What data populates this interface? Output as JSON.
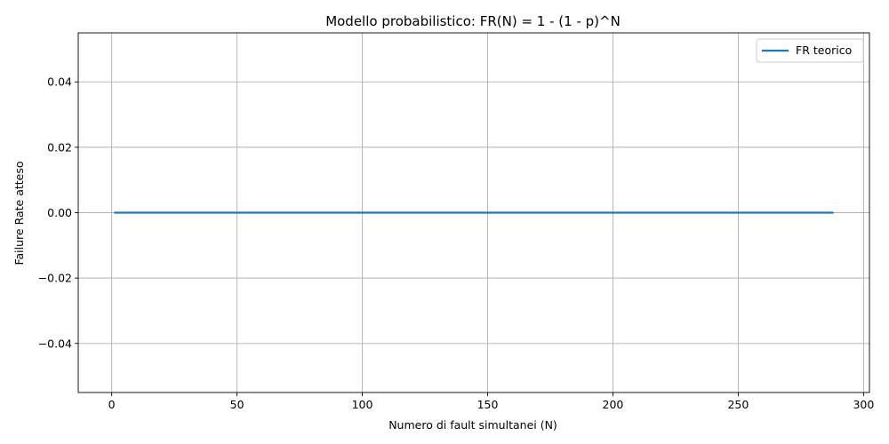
{
  "chart_data": {
    "type": "line",
    "title": "Modello probabilistico: FR(N) = 1 - (1 - p)^N",
    "xlabel": "Numero di fault simultanei (N)",
    "ylabel": "Failure Rate atteso",
    "xlim": [
      -13.35,
      302.35
    ],
    "ylim": [
      -0.055,
      0.055
    ],
    "xticks": [
      0,
      50,
      100,
      150,
      200,
      250,
      300
    ],
    "xtick_labels": [
      "0",
      "50",
      "100",
      "150",
      "200",
      "250",
      "300"
    ],
    "yticks": [
      0.04,
      0.02,
      0.0,
      -0.02,
      -0.04
    ],
    "ytick_labels": [
      "0.04",
      "0.02",
      "0.00",
      "−0.02",
      "−0.04"
    ],
    "grid": true,
    "legend_position": "top-right",
    "series": [
      {
        "name": "FR teorico",
        "color": "#1f77b4",
        "x": [
          1,
          288
        ],
        "y": [
          0,
          0
        ]
      }
    ]
  }
}
